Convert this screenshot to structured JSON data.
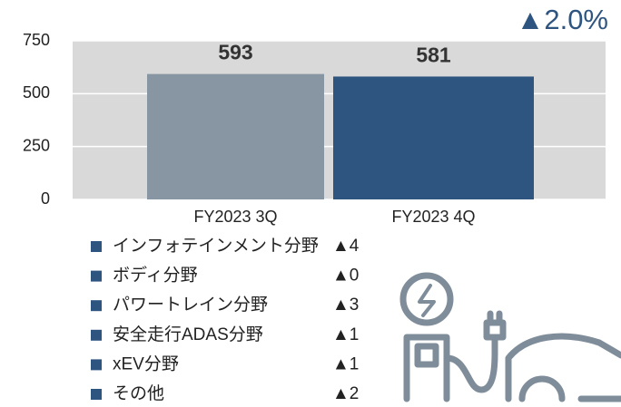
{
  "chart_data": {
    "type": "bar",
    "annotation": "▲2.0%",
    "categories": [
      "FY2023 3Q",
      "FY2023 4Q"
    ],
    "values": [
      593,
      581
    ],
    "colors": [
      "#8896a3",
      "#2e5480"
    ],
    "ylim": [
      0,
      750
    ],
    "yticks": [
      0,
      250,
      500,
      750
    ],
    "grid": true,
    "breakdown": [
      {
        "label": "インフォテインメント分野",
        "change": "▲4"
      },
      {
        "label": "ボディ分野",
        "change": "▲0"
      },
      {
        "label": "パワートレイン分野",
        "change": "▲3"
      },
      {
        "label": "安全走行ADAS分野",
        "change": "▲1"
      },
      {
        "label": "xEV分野",
        "change": "▲1"
      },
      {
        "label": "その他",
        "change": "▲2"
      }
    ]
  }
}
